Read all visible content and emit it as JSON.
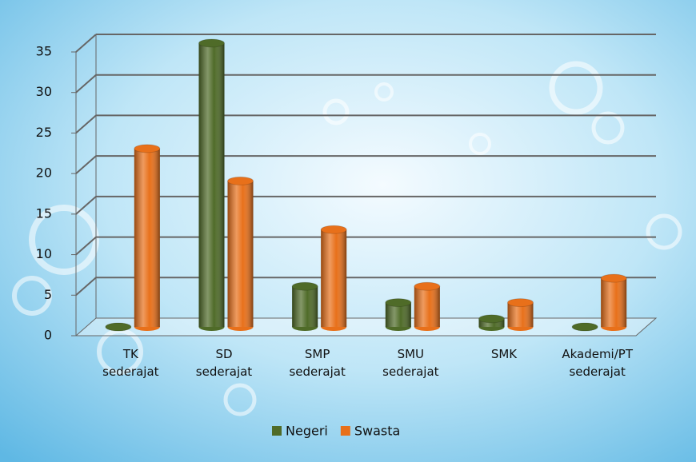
{
  "chart_data": {
    "type": "bar",
    "categories": [
      "TK sederajat",
      "SD sederajat",
      "SMP sederajat",
      "SMU sederajat",
      "SMK",
      "Akademi/PT sederajat"
    ],
    "series": [
      {
        "name": "Negeri",
        "color": "#4f6b28",
        "values": [
          0,
          35,
          5,
          3,
          1,
          0
        ]
      },
      {
        "name": "Swasta",
        "color": "#e8701a",
        "values": [
          22,
          18,
          12,
          5,
          3,
          6
        ]
      }
    ],
    "ylim": [
      0,
      35
    ],
    "yticks": [
      0,
      5,
      10,
      15,
      20,
      25,
      30,
      35
    ],
    "grid": true
  }
}
